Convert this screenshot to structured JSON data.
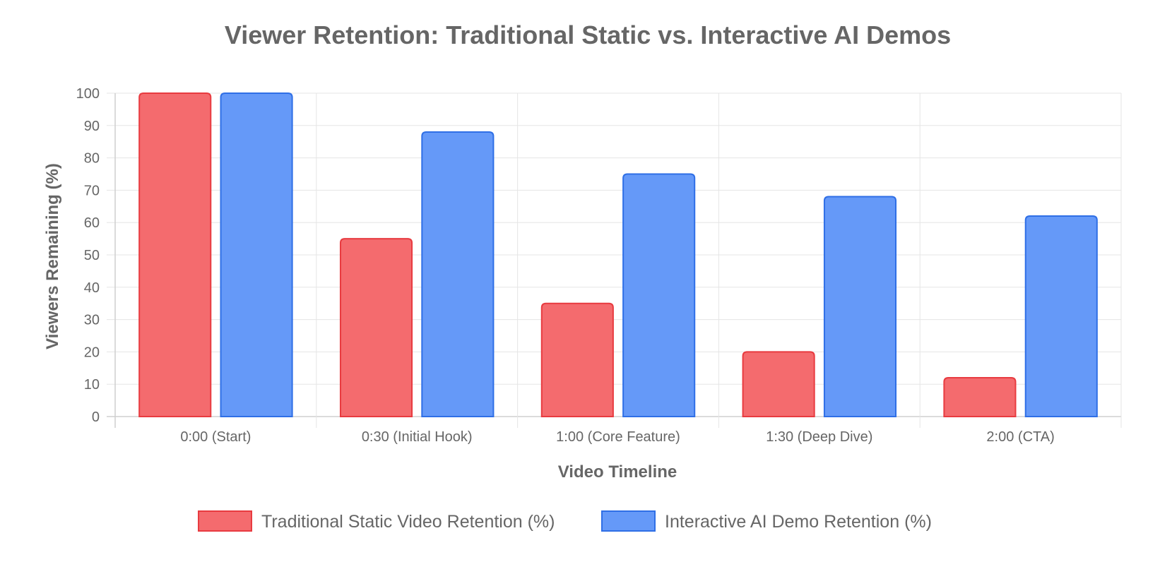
{
  "chart_data": {
    "type": "bar",
    "title": "Viewer Retention: Traditional Static vs. Interactive AI Demos",
    "xlabel": "Video Timeline",
    "ylabel": "Viewers Remaining (%)",
    "ylim": [
      0,
      100
    ],
    "y_ticks": [
      "0",
      "10",
      "20",
      "30",
      "40",
      "50",
      "60",
      "70",
      "80",
      "90",
      "100"
    ],
    "categories": [
      "0:00 (Start)",
      "0:30 (Initial Hook)",
      "1:00 (Core Feature)",
      "1:30 (Deep Dive)",
      "2:00 (CTA)"
    ],
    "series": [
      {
        "name": "Traditional Static Video Retention (%)",
        "values": [
          100,
          55,
          35,
          20,
          12
        ],
        "fill": "#f46b6e",
        "stroke": "#e83b40"
      },
      {
        "name": "Interactive AI Demo Retention (%)",
        "values": [
          100,
          88,
          75,
          68,
          62
        ],
        "fill": "#6599f8",
        "stroke": "#2f6fe6"
      }
    ],
    "grid": true,
    "legend_position": "bottom"
  }
}
